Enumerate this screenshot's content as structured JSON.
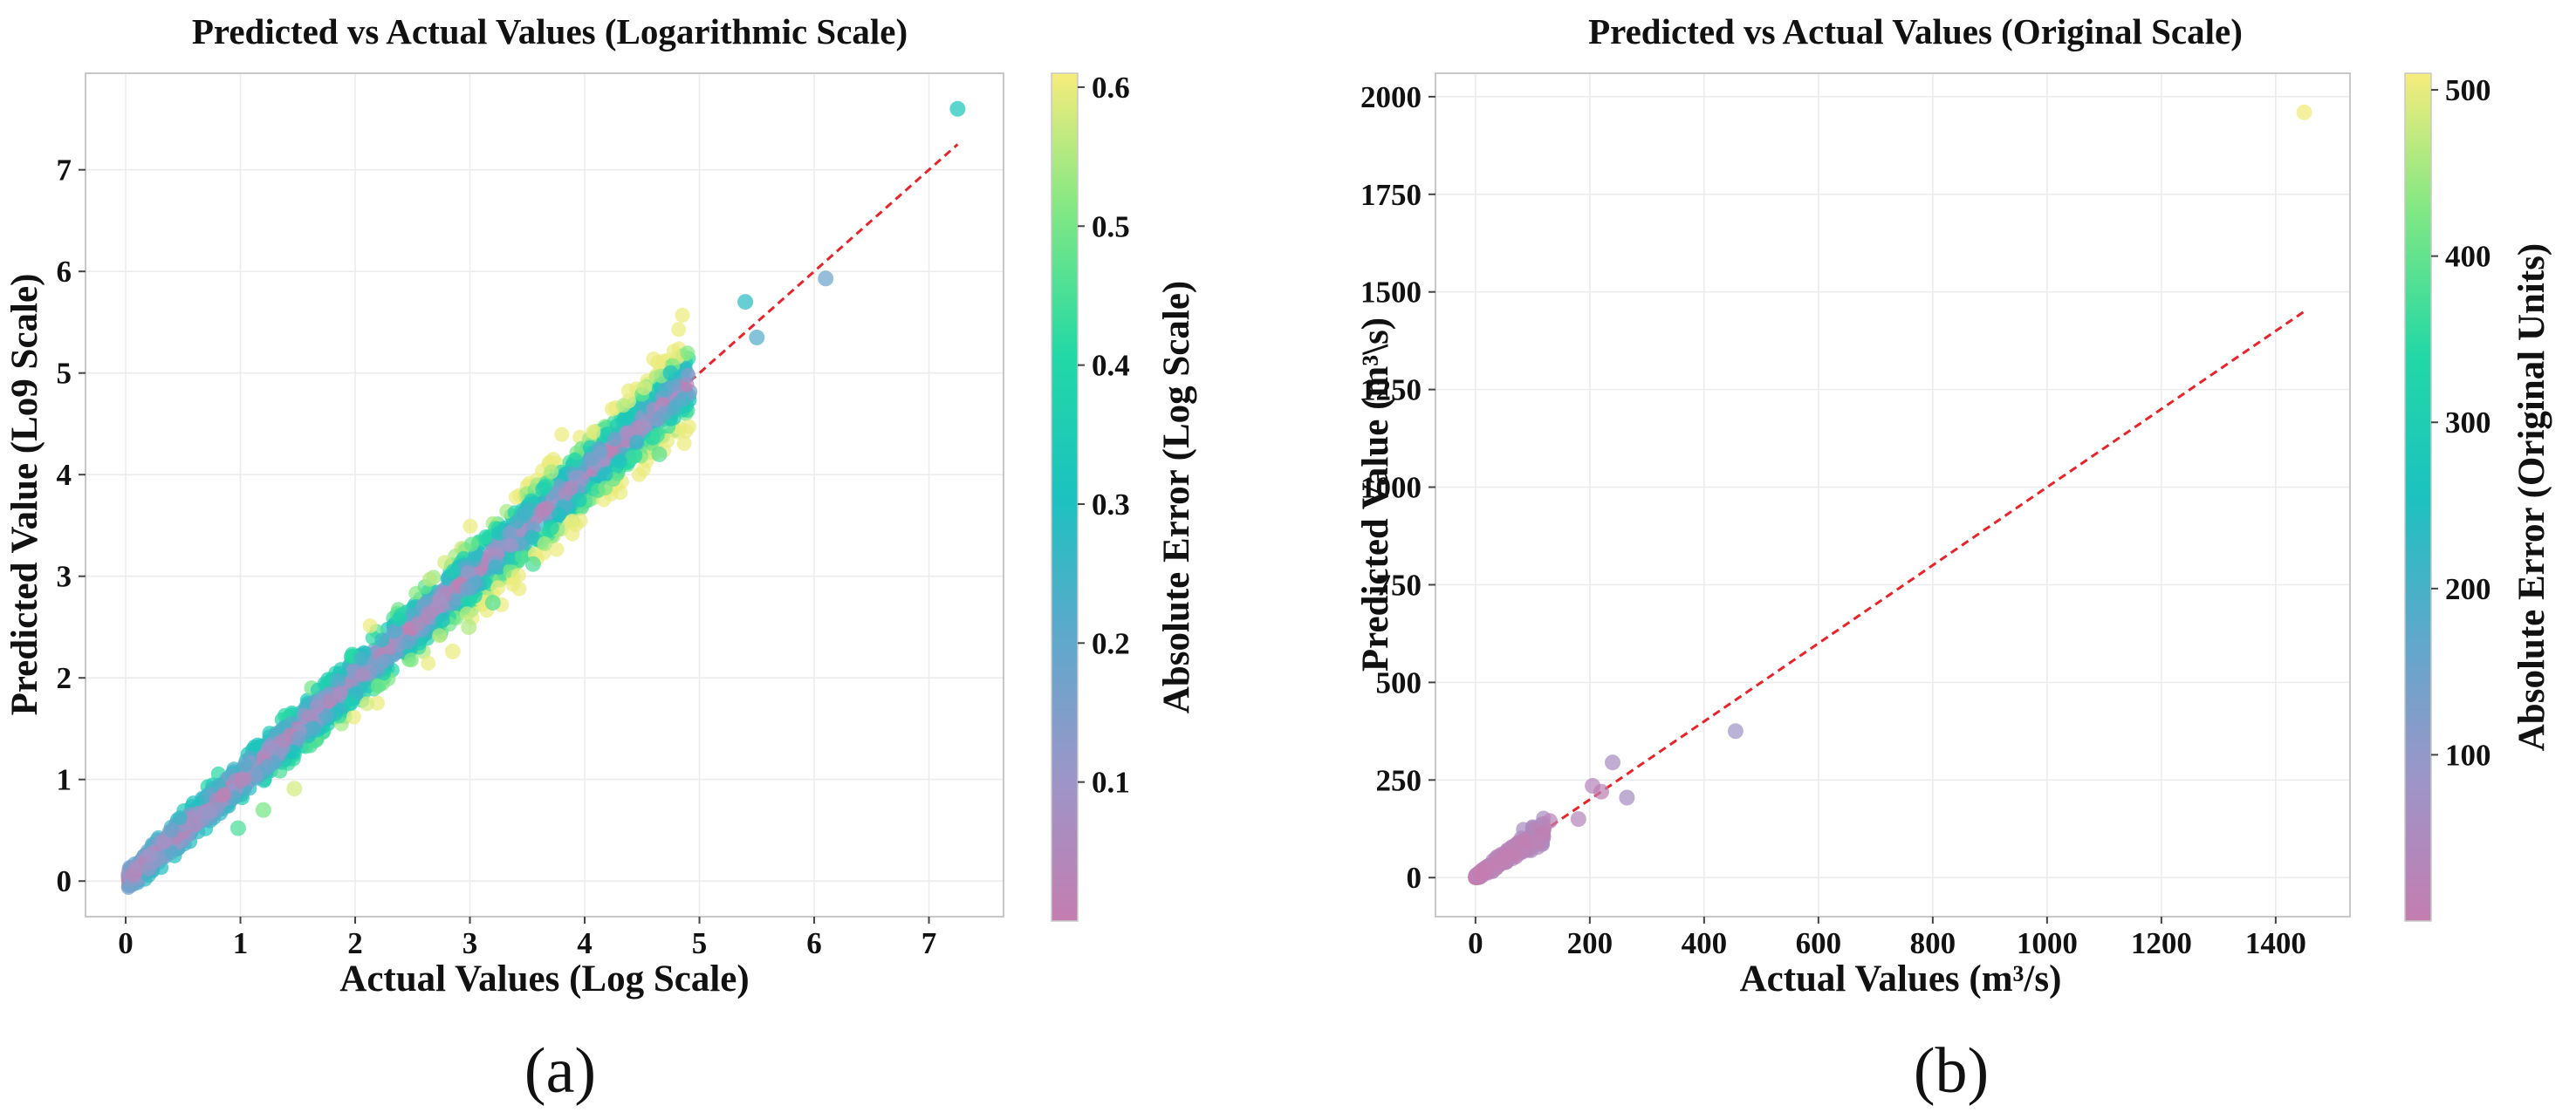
{
  "figure": {
    "caption_a": "(a)",
    "caption_b": "(b)"
  },
  "chart_data": [
    {
      "id": "a",
      "type": "scatter",
      "title": "Predicted vs Actual Values (Logarithmic Scale)",
      "xlabel": "Actual Values (Log Scale)",
      "ylabel": "Predicted Value (Lo9 Scale)",
      "xlim": [
        -0.35,
        7.65
      ],
      "ylim": [
        -0.35,
        7.95
      ],
      "xticks": [
        0,
        1,
        2,
        3,
        4,
        5,
        6,
        7
      ],
      "yticks": [
        0,
        1,
        2,
        3,
        4,
        5,
        6,
        7
      ],
      "reference_line": {
        "label": "y = x",
        "from": [
          0.05,
          0.05
        ],
        "to": [
          7.25,
          7.25
        ],
        "color": "#e8232a",
        "style": "dashed"
      },
      "colorbar": {
        "label": "Absolute Error (Log Scale)",
        "range": [
          0.0,
          0.61
        ],
        "ticks": [
          0.1,
          0.2,
          0.3,
          0.4,
          0.5,
          0.6
        ],
        "colormap": [
          "#c47db0",
          "#9d95c8",
          "#5fa8cc",
          "#1cc2c0",
          "#22d8a6",
          "#7ee784",
          "#f6ec7c"
        ]
      },
      "points_note": "≈2500 points tightly clustered along y = x for x in 0–5, spread increasing with x; notable outliers listed below",
      "outliers": [
        {
          "x": 7.25,
          "y": 7.6,
          "err": 0.32
        },
        {
          "x": 6.1,
          "y": 5.93,
          "err": 0.18
        },
        {
          "x": 5.5,
          "y": 5.35,
          "err": 0.22
        },
        {
          "x": 5.4,
          "y": 5.7,
          "err": 0.28
        },
        {
          "x": 4.65,
          "y": 4.2,
          "err": 0.47
        },
        {
          "x": 4.75,
          "y": 5.0,
          "err": 0.3
        },
        {
          "x": 2.85,
          "y": 2.26,
          "err": 0.6
        },
        {
          "x": 2.99,
          "y": 2.5,
          "err": 0.55
        },
        {
          "x": 3.2,
          "y": 2.74,
          "err": 0.46
        },
        {
          "x": 3.55,
          "y": 3.12,
          "err": 0.45
        },
        {
          "x": 1.47,
          "y": 0.91,
          "err": 0.58
        },
        {
          "x": 1.2,
          "y": 0.7,
          "err": 0.5
        },
        {
          "x": 0.98,
          "y": 0.52,
          "err": 0.45
        }
      ]
    },
    {
      "id": "b",
      "type": "scatter",
      "title": "Predicted vs Actual Values (Original Scale)",
      "xlabel": "Actual Values (m³/s)",
      "ylabel": "Predicted Value (m³\\s)",
      "xlim": [
        -70,
        1530
      ],
      "ylim": [
        -100,
        2060
      ],
      "xticks": [
        0,
        200,
        400,
        600,
        800,
        1000,
        1200,
        1400
      ],
      "yticks": [
        0,
        250,
        500,
        750,
        1000,
        1250,
        1500,
        1750,
        2000
      ],
      "reference_line": {
        "label": "y = x",
        "from": [
          0,
          0
        ],
        "to": [
          1450,
          1450
        ],
        "color": "#e8232a",
        "style": "dashed"
      },
      "colorbar": {
        "label": "Absolute Error (Original Units)",
        "range": [
          0,
          510
        ],
        "ticks": [
          100,
          200,
          300,
          400,
          500
        ],
        "colormap": [
          "#c47db0",
          "#9d95c8",
          "#5fa8cc",
          "#1cc2c0",
          "#22d8a6",
          "#7ee784",
          "#f6ec7c"
        ]
      },
      "points_note": "dense cluster near origin (0–150) with a few points up to ~450 and one extreme point at (1450, 1960)",
      "outliers": [
        {
          "x": 1450,
          "y": 1960,
          "err": 505
        },
        {
          "x": 455,
          "y": 375,
          "err": 80
        },
        {
          "x": 265,
          "y": 205,
          "err": 60
        },
        {
          "x": 240,
          "y": 295,
          "err": 55
        },
        {
          "x": 205,
          "y": 235,
          "err": 30
        },
        {
          "x": 220,
          "y": 220,
          "err": 15
        },
        {
          "x": 180,
          "y": 150,
          "err": 30
        },
        {
          "x": 130,
          "y": 145,
          "err": 20
        },
        {
          "x": 110,
          "y": 90,
          "err": 20
        }
      ]
    }
  ]
}
